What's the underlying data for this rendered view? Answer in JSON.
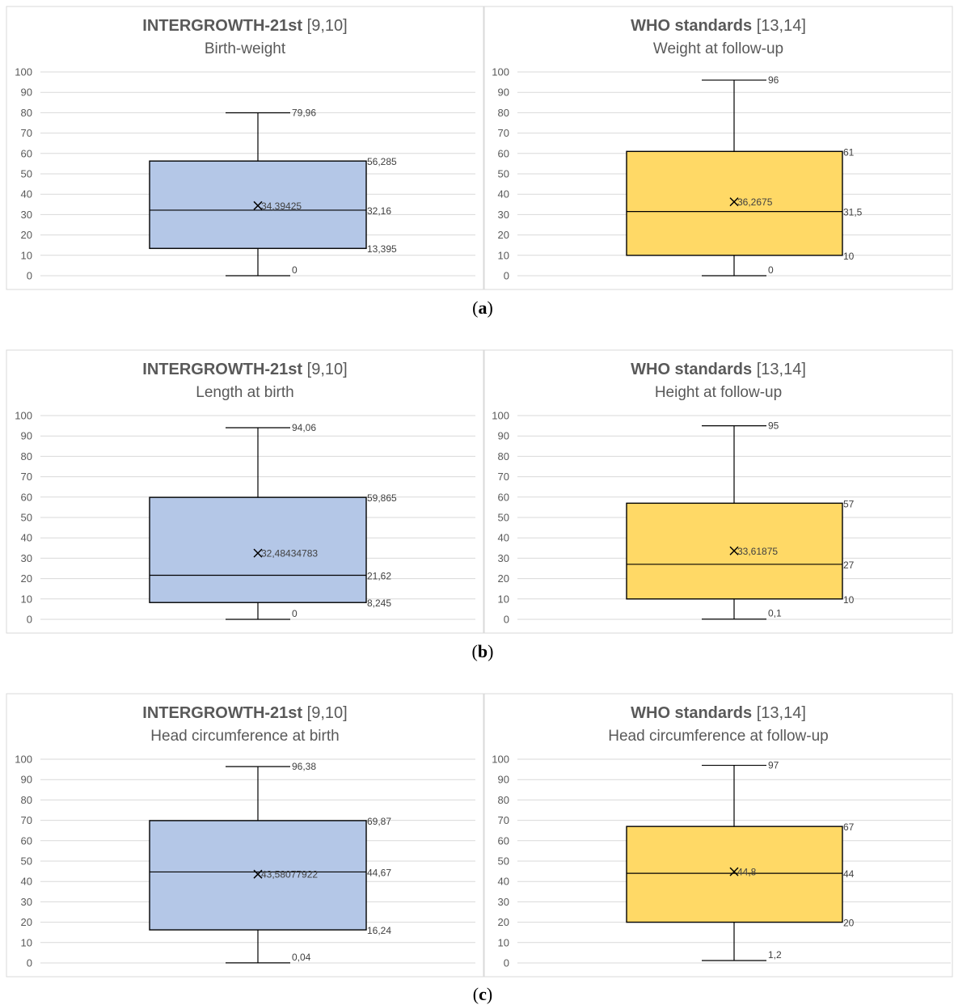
{
  "panel_labels": [
    "a",
    "b",
    "c"
  ],
  "colors": {
    "left_box": "#b4c7e7",
    "right_box": "#ffd966",
    "grid": "#d9d9d9",
    "line": "#000000"
  },
  "chart_data": [
    {
      "type": "box",
      "row": 0,
      "side": "left",
      "title_bold": "INTERGROWTH-21st",
      "title_ref": " [9,10]",
      "subtitle": "Birth-weight",
      "ylim": [
        0,
        100
      ],
      "yticks": [
        0,
        10,
        20,
        30,
        40,
        50,
        60,
        70,
        80,
        90,
        100
      ],
      "grid": true,
      "min": 0,
      "q1": 13.395,
      "median": 32.16,
      "q3": 56.285,
      "max": 79.96,
      "mean": 34.39425,
      "labels": {
        "min": "0",
        "q1": "13,395",
        "median": "32,16",
        "q3": "56,285",
        "max": "79,96",
        "mean": "34,39425"
      }
    },
    {
      "type": "box",
      "row": 0,
      "side": "right",
      "title_bold": "WHO standards",
      "title_ref": " [13,14]",
      "subtitle": "Weight at follow-up",
      "ylim": [
        0,
        100
      ],
      "yticks": [
        0,
        10,
        20,
        30,
        40,
        50,
        60,
        70,
        80,
        90,
        100
      ],
      "grid": true,
      "min": 0,
      "q1": 10,
      "median": 31.5,
      "q3": 61,
      "max": 96,
      "mean": 36.2675,
      "labels": {
        "min": "0",
        "q1": "10",
        "median": "31,5",
        "q3": "61",
        "max": "96",
        "mean": "36,2675"
      }
    },
    {
      "type": "box",
      "row": 1,
      "side": "left",
      "title_bold": "INTERGROWTH-21st",
      "title_ref": " [9,10]",
      "subtitle": "Length at birth",
      "ylim": [
        0,
        100
      ],
      "yticks": [
        0,
        10,
        20,
        30,
        40,
        50,
        60,
        70,
        80,
        90,
        100
      ],
      "grid": true,
      "min": 0,
      "q1": 8.245,
      "median": 21.62,
      "q3": 59.865,
      "max": 94.06,
      "mean": 32.48434783,
      "labels": {
        "min": "0",
        "q1": "8,245",
        "median": "21,62",
        "q3": "59,865",
        "max": "94,06",
        "mean": "32,48434783"
      }
    },
    {
      "type": "box",
      "row": 1,
      "side": "right",
      "title_bold": "WHO standards",
      "title_ref": " [13,14]",
      "subtitle": "Height at follow-up",
      "ylim": [
        0,
        100
      ],
      "yticks": [
        0,
        10,
        20,
        30,
        40,
        50,
        60,
        70,
        80,
        90,
        100
      ],
      "grid": true,
      "min": 0.1,
      "q1": 10,
      "median": 27,
      "q3": 57,
      "max": 95,
      "mean": 33.61875,
      "labels": {
        "min": "0,1",
        "q1": "10",
        "median": "27",
        "q3": "57",
        "max": "95",
        "mean": "33,61875"
      }
    },
    {
      "type": "box",
      "row": 2,
      "side": "left",
      "title_bold": "INTERGROWTH-21st",
      "title_ref": " [9,10]",
      "subtitle": "Head circumference at birth",
      "ylim": [
        0,
        100
      ],
      "yticks": [
        0,
        10,
        20,
        30,
        40,
        50,
        60,
        70,
        80,
        90,
        100
      ],
      "grid": true,
      "min": 0.04,
      "q1": 16.24,
      "median": 44.67,
      "q3": 69.87,
      "max": 96.38,
      "mean": 43.58077922,
      "labels": {
        "min": "0,04",
        "q1": "16,24",
        "median": "44,67",
        "q3": "69,87",
        "max": "96,38",
        "mean": "43,58077922"
      }
    },
    {
      "type": "box",
      "row": 2,
      "side": "right",
      "title_bold": "WHO standards",
      "title_ref": " [13,14]",
      "subtitle": "Head circumference at follow-up",
      "ylim": [
        0,
        100
      ],
      "yticks": [
        0,
        10,
        20,
        30,
        40,
        50,
        60,
        70,
        80,
        90,
        100
      ],
      "grid": true,
      "min": 1.2,
      "q1": 20,
      "median": 44,
      "q3": 67,
      "max": 97,
      "mean": 44.8,
      "labels": {
        "min": "1,2",
        "q1": "20",
        "median": "44",
        "q3": "67",
        "max": "97",
        "mean": "44,8"
      }
    }
  ]
}
